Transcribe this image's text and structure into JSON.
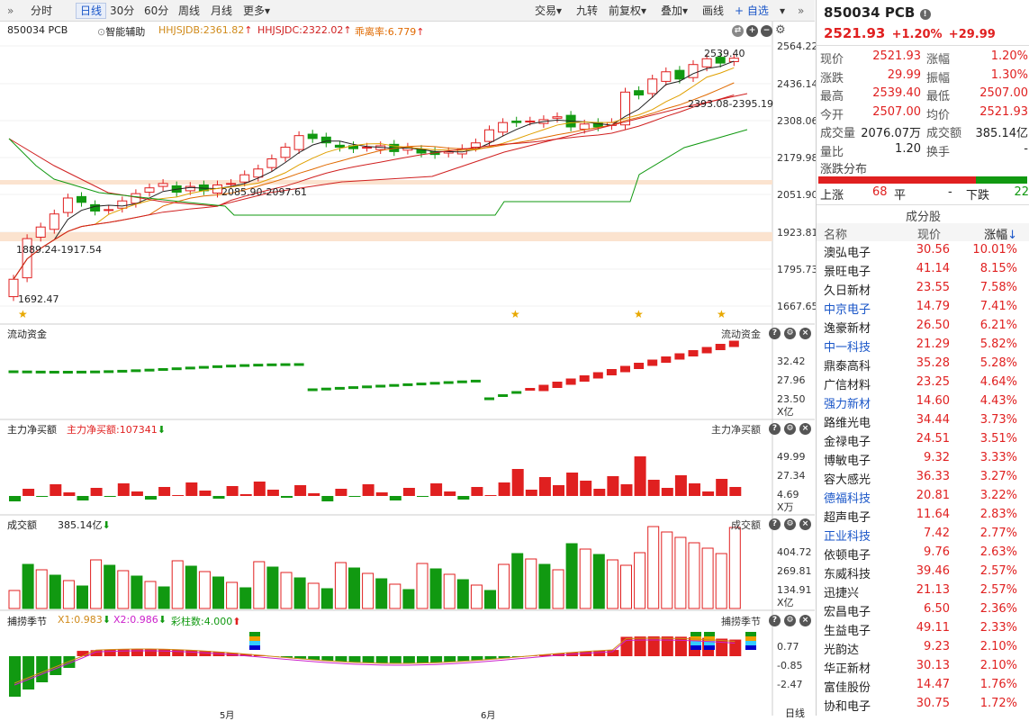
{
  "toolbar": {
    "left": [
      "分时",
      "日线",
      "30分",
      "60分",
      "周线",
      "月线",
      "更多▾"
    ],
    "right": [
      "交易▾",
      "九转",
      "前复权▾",
      "叠加▾",
      "画线"
    ],
    "fav": "+ 自选"
  },
  "chart": {
    "header": {
      "name": "850034 PCB",
      "assist": "智能辅助",
      "ind1": "HHJSJDB:2361.82",
      "ind2": "HHJSJDC:2322.02",
      "ind3": "乖离率:6.779"
    },
    "price_axis": [
      "2564.22",
      "2436.14",
      "2308.06",
      "2179.98",
      "2051.90",
      "1923.81",
      "1795.73",
      "1667.65"
    ],
    "annotations": {
      "high": "2539.40",
      "range1": "2393.08-2395.19",
      "range2": "2085.90-2097.61",
      "range3": "1889.24-1917.54",
      "low": "1692.47"
    },
    "flow": {
      "title": "流动资金",
      "right": "流动资金",
      "axis": [
        "32.42",
        "27.96",
        "23.50"
      ],
      "unit": "X亿"
    },
    "main": {
      "title": "主力净买额",
      "value": "主力净买额:107341",
      "right": "主力净买额",
      "axis": [
        "49.99",
        "27.34",
        "4.69"
      ],
      "unit": "X万"
    },
    "volume": {
      "title": "成交额",
      "value": "385.14亿",
      "right": "成交额",
      "axis": [
        "404.72",
        "269.81",
        "134.91"
      ],
      "unit": "X亿"
    },
    "season": {
      "title": "捕捞季节",
      "x1": "X1:0.983",
      "x2": "X2:0.986",
      "bar": "彩柱数:4.000",
      "right": "捕捞季节",
      "axis": [
        "0.77",
        "-0.85",
        "-2.47"
      ]
    },
    "xaxis": {
      "m5": "5月",
      "m6": "6月",
      "period": "日线"
    }
  },
  "colors": {
    "up": "#e02020",
    "down": "#119911",
    "accent": "#1a56c8"
  },
  "quote": {
    "code": "850034 PCB",
    "price": "2521.93",
    "pct": "+1.20%",
    "chg": "+29.99",
    "rows": [
      [
        "现价",
        "2521.93",
        "涨幅",
        "1.20%"
      ],
      [
        "涨跌",
        "29.99",
        "振幅",
        "1.30%"
      ],
      [
        "最高",
        "2539.40",
        "最低",
        "2507.00"
      ],
      [
        "今开",
        "2507.00",
        "均价",
        "2521.93"
      ],
      [
        "成交量",
        "2076.07万",
        "成交额",
        "385.14亿"
      ],
      [
        "量比",
        "1.20",
        "换手",
        "-"
      ]
    ],
    "dist_title": "涨跌分布",
    "up_label": "上涨",
    "up": "68",
    "flat_label": "平",
    "flat": "-",
    "down_label": "下跌",
    "down": "22",
    "comp_title": "成分股",
    "col_name": "名称",
    "col_price": "现价",
    "col_pct": "涨幅"
  },
  "components": [
    [
      "澳弘电子",
      "30.56",
      "10.01%",
      0
    ],
    [
      "景旺电子",
      "41.14",
      "8.15%",
      0
    ],
    [
      "久日新材",
      "23.55",
      "7.58%",
      0
    ],
    [
      "中京电子",
      "14.79",
      "7.41%",
      1
    ],
    [
      "逸豪新材",
      "26.50",
      "6.21%",
      0
    ],
    [
      "中一科技",
      "21.29",
      "5.82%",
      1
    ],
    [
      "鼎泰高科",
      "35.28",
      "5.28%",
      0
    ],
    [
      "广信材料",
      "23.25",
      "4.64%",
      0
    ],
    [
      "强力新材",
      "14.60",
      "4.43%",
      1
    ],
    [
      "路维光电",
      "34.44",
      "3.73%",
      0
    ],
    [
      "金禄电子",
      "24.51",
      "3.51%",
      0
    ],
    [
      "博敏电子",
      "9.32",
      "3.33%",
      0
    ],
    [
      "容大感光",
      "36.33",
      "3.27%",
      0
    ],
    [
      "德福科技",
      "20.81",
      "3.22%",
      1
    ],
    [
      "超声电子",
      "11.64",
      "2.83%",
      0
    ],
    [
      "正业科技",
      "7.42",
      "2.77%",
      1
    ],
    [
      "依顿电子",
      "9.76",
      "2.63%",
      0
    ],
    [
      "东威科技",
      "39.46",
      "2.57%",
      0
    ],
    [
      "迅捷兴",
      "21.13",
      "2.57%",
      0
    ],
    [
      "宏昌电子",
      "6.50",
      "2.36%",
      0
    ],
    [
      "生益电子",
      "49.11",
      "2.33%",
      0
    ],
    [
      "光韵达",
      "9.23",
      "2.10%",
      0
    ],
    [
      "华正新材",
      "30.13",
      "2.10%",
      0
    ],
    [
      "富佳股份",
      "14.47",
      "1.76%",
      0
    ],
    [
      "协和电子",
      "30.75",
      "1.72%",
      0
    ]
  ]
}
